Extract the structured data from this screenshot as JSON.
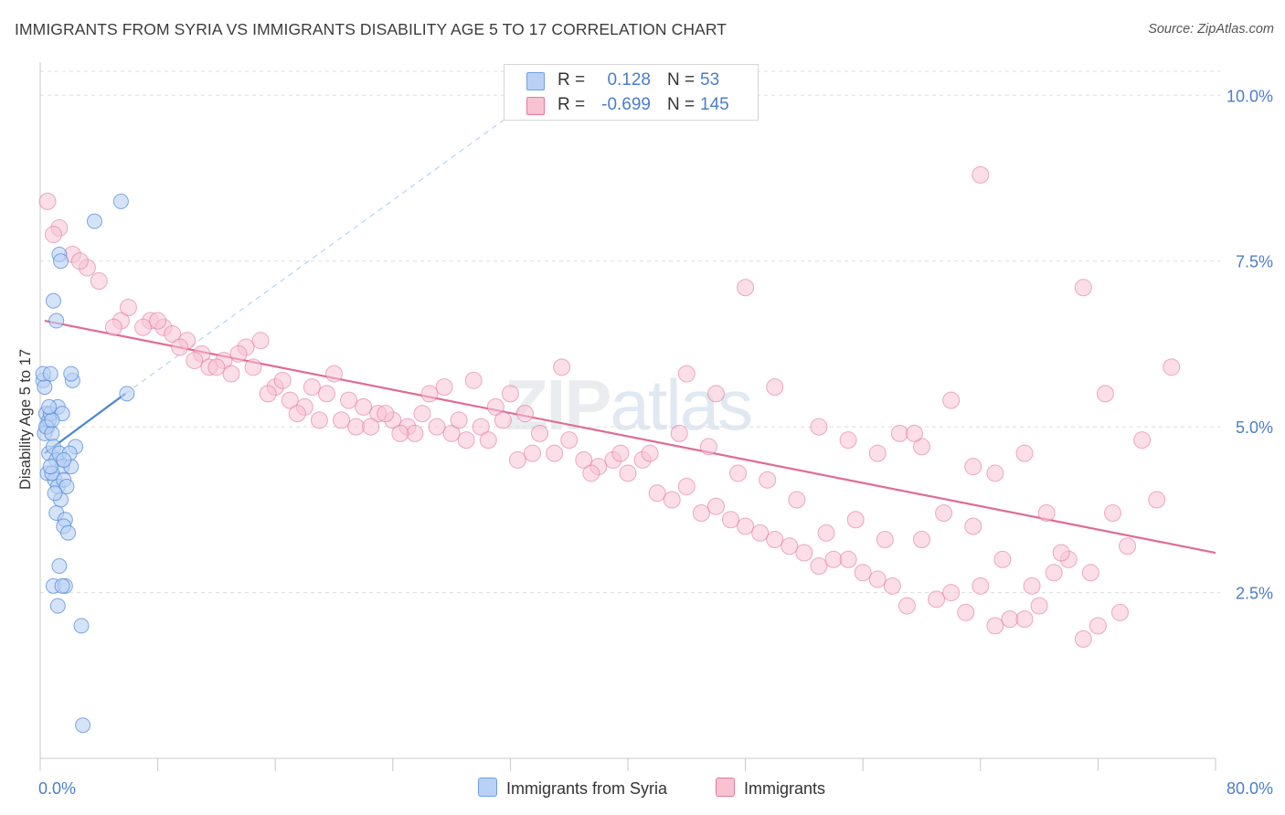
{
  "title": "IMMIGRANTS FROM SYRIA VS IMMIGRANTS DISABILITY AGE 5 TO 17 CORRELATION CHART",
  "source": "Source: ZipAtlas.com",
  "watermark": {
    "zip": "ZIP",
    "atlas": "atlas"
  },
  "legend": {
    "rows": [
      {
        "r_label": "R =",
        "r_value": "0.128",
        "n_label": "N =",
        "n_value": "53",
        "color": "#6f9fe3",
        "fill": "#b9d1f5"
      },
      {
        "r_label": "R =",
        "r_value": "-0.699",
        "n_label": "N =",
        "n_value": "145",
        "color": "#e8779c",
        "fill": "#f7c3d3"
      }
    ]
  },
  "bottom_legend": [
    {
      "label": "Immigrants from Syria"
    },
    {
      "label": "Immigrants"
    }
  ],
  "chart_data": {
    "type": "scatter",
    "title": "IMMIGRANTS FROM SYRIA VS IMMIGRANTS DISABILITY AGE 5 TO 17 CORRELATION CHART",
    "xlabel": "",
    "ylabel": "Disability Age 5 to 17",
    "xlim": [
      0,
      80
    ],
    "ylim": [
      0,
      10.5
    ],
    "x_tick_labels": [
      "0.0%",
      "80.0%"
    ],
    "y_ticks": [
      2.5,
      5.0,
      7.5,
      10.0
    ],
    "y_tick_labels": [
      "2.5%",
      "5.0%",
      "7.5%",
      "10.0%"
    ],
    "grid": true,
    "legend_placement": "top-center",
    "colors": {
      "syria": "#4a86d6",
      "syria_fill": "#b9d1f5",
      "immigrants": "#e06b94",
      "immigrants_fill": "#f7c3d3",
      "tick_label": "#4a7ecb"
    },
    "series": [
      {
        "name": "Immigrants from Syria",
        "trend": {
          "x": [
            0.3,
            5.8
          ],
          "y": [
            4.6,
            5.5
          ],
          "extended_to": [
            32,
            9.7
          ]
        },
        "points": [
          [
            0.2,
            5.7
          ],
          [
            0.3,
            5.6
          ],
          [
            0.4,
            5.2
          ],
          [
            0.5,
            5.0
          ],
          [
            0.3,
            4.9
          ],
          [
            0.6,
            5.1
          ],
          [
            0.2,
            5.8
          ],
          [
            0.7,
            5.2
          ],
          [
            0.4,
            5.0
          ],
          [
            0.8,
            4.9
          ],
          [
            0.6,
            4.6
          ],
          [
            0.9,
            4.7
          ],
          [
            0.5,
            4.3
          ],
          [
            1.1,
            4.5
          ],
          [
            1.3,
            4.6
          ],
          [
            1.0,
            4.2
          ],
          [
            1.5,
            4.4
          ],
          [
            1.2,
            4.1
          ],
          [
            0.8,
            4.3
          ],
          [
            1.6,
            4.2
          ],
          [
            1.4,
            3.9
          ],
          [
            1.1,
            3.7
          ],
          [
            1.7,
            3.6
          ],
          [
            1.6,
            3.5
          ],
          [
            1.9,
            3.4
          ],
          [
            1.3,
            2.9
          ],
          [
            0.9,
            2.6
          ],
          [
            1.7,
            2.6
          ],
          [
            1.5,
            2.6
          ],
          [
            1.2,
            2.3
          ],
          [
            2.8,
            2.0
          ],
          [
            2.9,
            0.5
          ],
          [
            1.1,
            6.6
          ],
          [
            0.9,
            6.9
          ],
          [
            1.3,
            7.6
          ],
          [
            1.4,
            7.5
          ],
          [
            3.7,
            8.1
          ],
          [
            5.5,
            8.4
          ],
          [
            5.9,
            5.5
          ],
          [
            2.2,
            5.7
          ],
          [
            2.1,
            5.8
          ],
          [
            1.2,
            5.3
          ],
          [
            1.5,
            5.2
          ],
          [
            0.8,
            5.1
          ],
          [
            0.6,
            5.3
          ],
          [
            0.7,
            5.8
          ],
          [
            2.1,
            4.4
          ],
          [
            2.4,
            4.7
          ],
          [
            2.0,
            4.6
          ],
          [
            1.8,
            4.1
          ],
          [
            1.0,
            4.0
          ],
          [
            0.7,
            4.4
          ],
          [
            1.6,
            4.5
          ]
        ]
      },
      {
        "name": "Immigrants",
        "trend": {
          "x": [
            0.3,
            80
          ],
          "y": [
            6.6,
            3.1
          ]
        },
        "points": [
          [
            0.5,
            8.4
          ],
          [
            1.3,
            8.0
          ],
          [
            2.2,
            7.6
          ],
          [
            3.2,
            7.4
          ],
          [
            4.0,
            7.2
          ],
          [
            0.9,
            7.9
          ],
          [
            2.7,
            7.5
          ],
          [
            5.5,
            6.6
          ],
          [
            5.0,
            6.5
          ],
          [
            6.0,
            6.8
          ],
          [
            7.5,
            6.6
          ],
          [
            8.4,
            6.5
          ],
          [
            9.0,
            6.4
          ],
          [
            10.0,
            6.3
          ],
          [
            11.0,
            6.1
          ],
          [
            12.5,
            6.0
          ],
          [
            14.0,
            6.2
          ],
          [
            15.0,
            6.3
          ],
          [
            10.5,
            6.0
          ],
          [
            11.5,
            5.9
          ],
          [
            13.0,
            5.8
          ],
          [
            14.5,
            5.9
          ],
          [
            16.0,
            5.6
          ],
          [
            17.0,
            5.4
          ],
          [
            18.5,
            5.6
          ],
          [
            19.5,
            5.5
          ],
          [
            21.0,
            5.4
          ],
          [
            22.0,
            5.3
          ],
          [
            23.0,
            5.2
          ],
          [
            24.0,
            5.1
          ],
          [
            25.0,
            5.0
          ],
          [
            26.0,
            5.2
          ],
          [
            27.0,
            5.0
          ],
          [
            28.0,
            4.9
          ],
          [
            29.0,
            4.8
          ],
          [
            30.0,
            5.0
          ],
          [
            31.0,
            5.3
          ],
          [
            32.0,
            5.5
          ],
          [
            33.0,
            5.2
          ],
          [
            34.0,
            4.9
          ],
          [
            35.0,
            4.6
          ],
          [
            36.0,
            4.8
          ],
          [
            37.0,
            4.5
          ],
          [
            38.0,
            4.4
          ],
          [
            39.0,
            4.5
          ],
          [
            40.0,
            4.3
          ],
          [
            41.0,
            4.5
          ],
          [
            42.0,
            4.0
          ],
          [
            43.0,
            3.9
          ],
          [
            44.0,
            4.1
          ],
          [
            45.0,
            3.7
          ],
          [
            46.0,
            3.8
          ],
          [
            47.0,
            3.6
          ],
          [
            48.0,
            3.5
          ],
          [
            49.0,
            3.4
          ],
          [
            50.0,
            3.3
          ],
          [
            51.0,
            3.2
          ],
          [
            52.0,
            3.1
          ],
          [
            53.0,
            2.9
          ],
          [
            54.0,
            3.0
          ],
          [
            55.0,
            3.0
          ],
          [
            56.0,
            2.8
          ],
          [
            57.0,
            2.7
          ],
          [
            58.0,
            2.6
          ],
          [
            59.0,
            2.3
          ],
          [
            60.0,
            3.3
          ],
          [
            61.0,
            2.4
          ],
          [
            62.0,
            2.5
          ],
          [
            63.0,
            2.2
          ],
          [
            64.0,
            2.6
          ],
          [
            65.0,
            2.0
          ],
          [
            66.0,
            2.1
          ],
          [
            67.0,
            2.1
          ],
          [
            68.0,
            2.3
          ],
          [
            69.0,
            2.8
          ],
          [
            70.0,
            3.0
          ],
          [
            71.0,
            1.8
          ],
          [
            72.0,
            2.0
          ],
          [
            73.0,
            3.7
          ],
          [
            74.0,
            3.2
          ],
          [
            75.0,
            4.8
          ],
          [
            76.0,
            3.9
          ],
          [
            77.0,
            5.9
          ],
          [
            64.0,
            8.8
          ],
          [
            71.0,
            7.1
          ],
          [
            48.0,
            7.1
          ],
          [
            44.0,
            5.8
          ],
          [
            46.0,
            5.5
          ],
          [
            50.0,
            5.6
          ],
          [
            53.0,
            5.0
          ],
          [
            55.0,
            4.8
          ],
          [
            57.0,
            4.6
          ],
          [
            58.5,
            4.9
          ],
          [
            60.0,
            4.7
          ],
          [
            62.0,
            5.4
          ],
          [
            63.5,
            4.4
          ],
          [
            65.0,
            4.3
          ],
          [
            67.0,
            4.6
          ],
          [
            68.5,
            3.7
          ],
          [
            72.5,
            5.5
          ],
          [
            16.5,
            5.7
          ],
          [
            18.0,
            5.3
          ],
          [
            20.0,
            5.8
          ],
          [
            21.5,
            5.0
          ],
          [
            23.5,
            5.2
          ],
          [
            25.5,
            4.9
          ],
          [
            27.5,
            5.6
          ],
          [
            29.5,
            5.7
          ],
          [
            31.5,
            5.1
          ],
          [
            33.5,
            4.6
          ],
          [
            35.5,
            5.9
          ],
          [
            37.5,
            4.3
          ],
          [
            39.5,
            4.6
          ],
          [
            41.5,
            4.6
          ],
          [
            43.5,
            4.9
          ],
          [
            45.5,
            4.7
          ],
          [
            47.5,
            4.3
          ],
          [
            49.5,
            4.2
          ],
          [
            51.5,
            3.9
          ],
          [
            53.5,
            3.4
          ],
          [
            55.5,
            3.6
          ],
          [
            57.5,
            3.3
          ],
          [
            59.5,
            4.9
          ],
          [
            61.5,
            3.7
          ],
          [
            63.5,
            3.5
          ],
          [
            65.5,
            3.0
          ],
          [
            67.5,
            2.6
          ],
          [
            69.5,
            3.1
          ],
          [
            71.5,
            2.8
          ],
          [
            73.5,
            2.2
          ],
          [
            7.0,
            6.5
          ],
          [
            8.0,
            6.6
          ],
          [
            9.5,
            6.2
          ],
          [
            12.0,
            5.9
          ],
          [
            13.5,
            6.1
          ],
          [
            15.5,
            5.5
          ],
          [
            17.5,
            5.2
          ],
          [
            19.0,
            5.1
          ],
          [
            20.5,
            5.1
          ],
          [
            22.5,
            5.0
          ],
          [
            24.5,
            4.9
          ],
          [
            26.5,
            5.5
          ],
          [
            28.5,
            5.1
          ],
          [
            30.5,
            4.8
          ],
          [
            32.5,
            4.5
          ]
        ]
      }
    ]
  }
}
